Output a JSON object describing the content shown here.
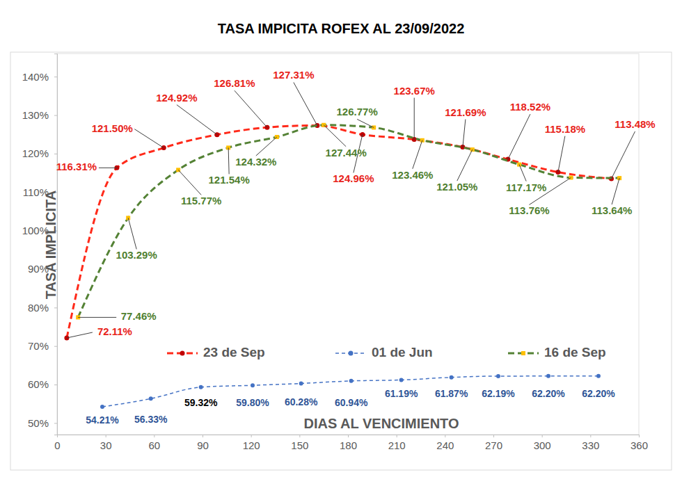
{
  "chart_data": {
    "type": "line",
    "title": "TASA IMPICITA ROFEX AL 23/09/2022",
    "x_label": "DIAS AL VENCIMIENTO",
    "y_label": "TASA IMPLICITA",
    "xlim": [
      0,
      360
    ],
    "xticks": [
      0,
      30,
      60,
      90,
      120,
      150,
      180,
      210,
      240,
      270,
      300,
      330,
      360
    ],
    "ylim": [
      47,
      146
    ],
    "yticks": [
      {
        "value": 50,
        "label": "50%"
      },
      {
        "value": 60,
        "label": "60%"
      },
      {
        "value": 70,
        "label": "70%"
      },
      {
        "value": 80,
        "label": "80%"
      },
      {
        "value": 90,
        "label": "90%"
      },
      {
        "value": 100,
        "label": "100%"
      },
      {
        "value": 110,
        "label": "110%"
      },
      {
        "value": 120,
        "label": "120%"
      },
      {
        "value": 130,
        "label": "130%"
      },
      {
        "value": 140,
        "label": "140%"
      }
    ],
    "grid": false,
    "legend": "bottom",
    "data_labels": true,
    "series": [
      {
        "name": "23 de Sep",
        "color": "#ff2a1a",
        "line_style": "dashed",
        "marker": "circle",
        "x": [
          6,
          37,
          66,
          99,
          130,
          161,
          189,
          221,
          251,
          279,
          310,
          343
        ],
        "values": [
          72.11,
          116.31,
          121.5,
          124.92,
          126.81,
          127.31,
          124.96,
          123.67,
          121.69,
          118.52,
          115.18,
          113.48
        ],
        "value_labels": [
          "72.11%",
          "116.31%",
          "121.50%",
          "124.92%",
          "126.81%",
          "127.31%",
          "124.96%",
          "123.67%",
          "121.69%",
          "118.52%",
          "115.18%",
          "113.48%"
        ]
      },
      {
        "name": "01 de Jun",
        "color": "#4472c4",
        "line_style": "dashed",
        "marker": "circle",
        "x": [
          28,
          58,
          89,
          121,
          151,
          182,
          213,
          244,
          273,
          304,
          335
        ],
        "values": [
          54.21,
          56.33,
          59.32,
          59.8,
          60.28,
          60.94,
          61.19,
          61.87,
          62.19,
          62.2,
          62.2
        ],
        "value_labels": [
          "54.21%",
          "56.33%",
          "59.32%",
          "59.80%",
          "60.28%",
          "60.94%",
          "61.19%",
          "61.87%",
          "62.19%",
          "62.20%",
          "62.20%"
        ]
      },
      {
        "name": "16 de Sep",
        "color": "#548235",
        "line_style": "dashed",
        "marker": "square",
        "x": [
          13,
          44,
          75,
          106,
          136,
          165,
          196,
          226,
          257,
          286,
          318,
          348
        ],
        "values": [
          77.46,
          103.29,
          115.77,
          121.54,
          124.32,
          127.44,
          126.77,
          123.46,
          121.05,
          117.17,
          113.76,
          113.64
        ],
        "value_labels": [
          "77.46%",
          "103.29%",
          "115.77%",
          "121.54%",
          "124.32%",
          "127.44%",
          "126.77%",
          "123.46%",
          "121.05%",
          "117.17%",
          "113.76%",
          "113.64%"
        ]
      }
    ]
  }
}
